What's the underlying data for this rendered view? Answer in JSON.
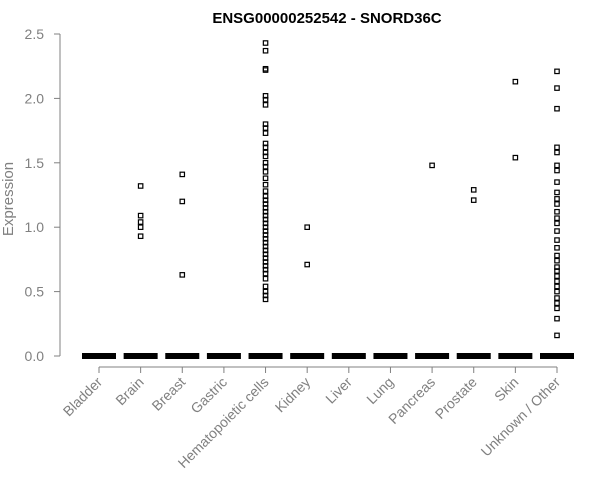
{
  "chart_data": {
    "type": "scatter",
    "title": "ENSG00000252542 - SNORD36C",
    "xlabel": "",
    "ylabel": "Expression",
    "ylim": [
      0,
      2.5
    ],
    "yticks": [
      "0.0",
      "0.5",
      "1.0",
      "1.5",
      "2.0",
      "2.5"
    ],
    "grid": false,
    "legend": "none",
    "point_color": "#000000",
    "axis_color": "#808080",
    "categories": [
      "Bladder",
      "Brain",
      "Breast",
      "Gastric",
      "Hematopoietic cells",
      "Kidney",
      "Liver",
      "Lung",
      "Pancreas",
      "Prostate",
      "Skin",
      "Unknown / Other"
    ],
    "series": [
      {
        "category": "Bladder",
        "values": []
      },
      {
        "category": "Brain",
        "values": [
          1.32,
          1.09,
          1.04,
          1.0,
          0.93
        ]
      },
      {
        "category": "Breast",
        "values": [
          1.41,
          1.2,
          0.63
        ]
      },
      {
        "category": "Gastric",
        "values": []
      },
      {
        "category": "Hematopoietic cells",
        "values": [
          2.43,
          2.37,
          2.23,
          2.22,
          2.02,
          1.99,
          1.95,
          1.8,
          1.77,
          1.73,
          1.65,
          1.62,
          1.58,
          1.55,
          1.5,
          1.47,
          1.43,
          1.38,
          1.33,
          1.28,
          1.24,
          1.21,
          1.18,
          1.15,
          1.12,
          1.09,
          1.06,
          1.03,
          1.0,
          0.97,
          0.94,
          0.91,
          0.88,
          0.85,
          0.82,
          0.79,
          0.76,
          0.73,
          0.7,
          0.67,
          0.64,
          0.6,
          0.54,
          0.5,
          0.47,
          0.44
        ]
      },
      {
        "category": "Kidney",
        "values": [
          1.0,
          0.71
        ]
      },
      {
        "category": "Liver",
        "values": []
      },
      {
        "category": "Lung",
        "values": []
      },
      {
        "category": "Pancreas",
        "values": [
          1.48
        ]
      },
      {
        "category": "Prostate",
        "values": [
          1.29,
          1.21
        ]
      },
      {
        "category": "Skin",
        "values": [
          2.13,
          1.54
        ]
      },
      {
        "category": "Unknown / Other",
        "values": [
          2.21,
          2.08,
          1.92,
          1.62,
          1.58,
          1.48,
          1.44,
          1.35,
          1.27,
          1.22,
          1.18,
          1.12,
          1.07,
          1.03,
          0.97,
          0.9,
          0.84,
          0.78,
          0.74,
          0.69,
          0.66,
          0.62,
          0.58,
          0.54,
          0.5,
          0.45,
          0.41,
          0.37,
          0.29,
          0.16
        ]
      }
    ]
  }
}
